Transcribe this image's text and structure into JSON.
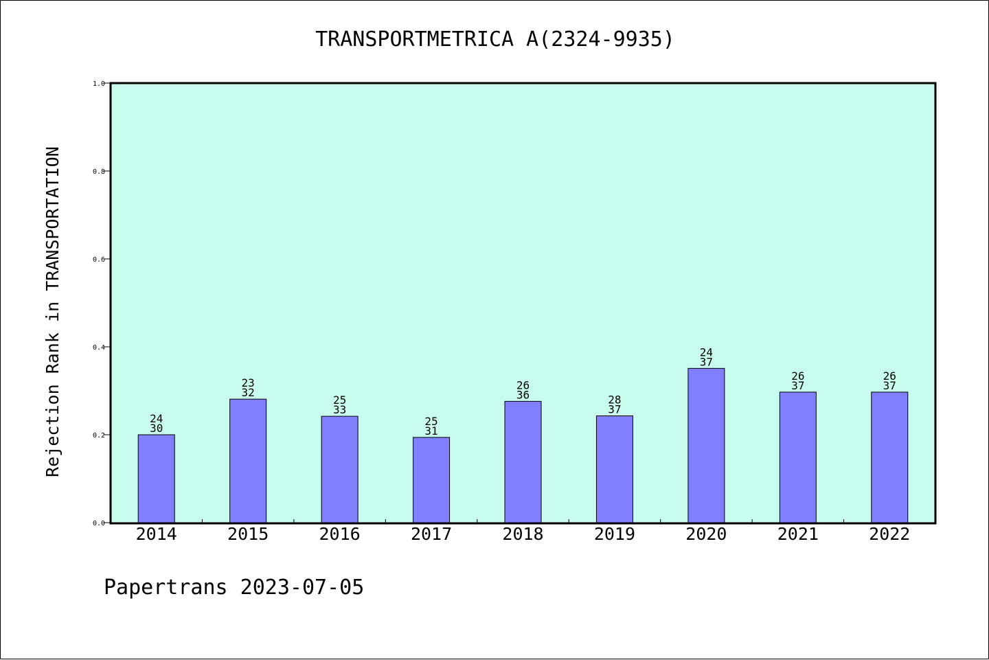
{
  "chart_data": {
    "type": "bar",
    "title": "TRANSPORTMETRICA A(2324-9935)",
    "ylabel": "Rejection Rank in TRANSPORTATION",
    "xlabel": "",
    "ylim": [
      0,
      1.0
    ],
    "yticks": [
      "0.0",
      "0.2",
      "0.4",
      "0.6",
      "0.8",
      "1.0"
    ],
    "categories": [
      "2014",
      "2015",
      "2016",
      "2017",
      "2018",
      "2019",
      "2020",
      "2021",
      "2022"
    ],
    "values": [
      0.2,
      0.281,
      0.242,
      0.194,
      0.276,
      0.243,
      0.351,
      0.297,
      0.297
    ],
    "bar_labels": [
      [
        "24",
        "30"
      ],
      [
        "23",
        "32"
      ],
      [
        "25",
        "33"
      ],
      [
        "25",
        "31"
      ],
      [
        "26",
        "36"
      ],
      [
        "28",
        "37"
      ],
      [
        "24",
        "37"
      ],
      [
        "26",
        "37"
      ],
      [
        "26",
        "37"
      ]
    ],
    "colors": {
      "plot_background": "#c8fcee",
      "bar_fill": "#8080ff",
      "bar_stroke": "#000000"
    },
    "grid": false,
    "legend": "none"
  },
  "footer": "Papertrans 2023-07-05"
}
